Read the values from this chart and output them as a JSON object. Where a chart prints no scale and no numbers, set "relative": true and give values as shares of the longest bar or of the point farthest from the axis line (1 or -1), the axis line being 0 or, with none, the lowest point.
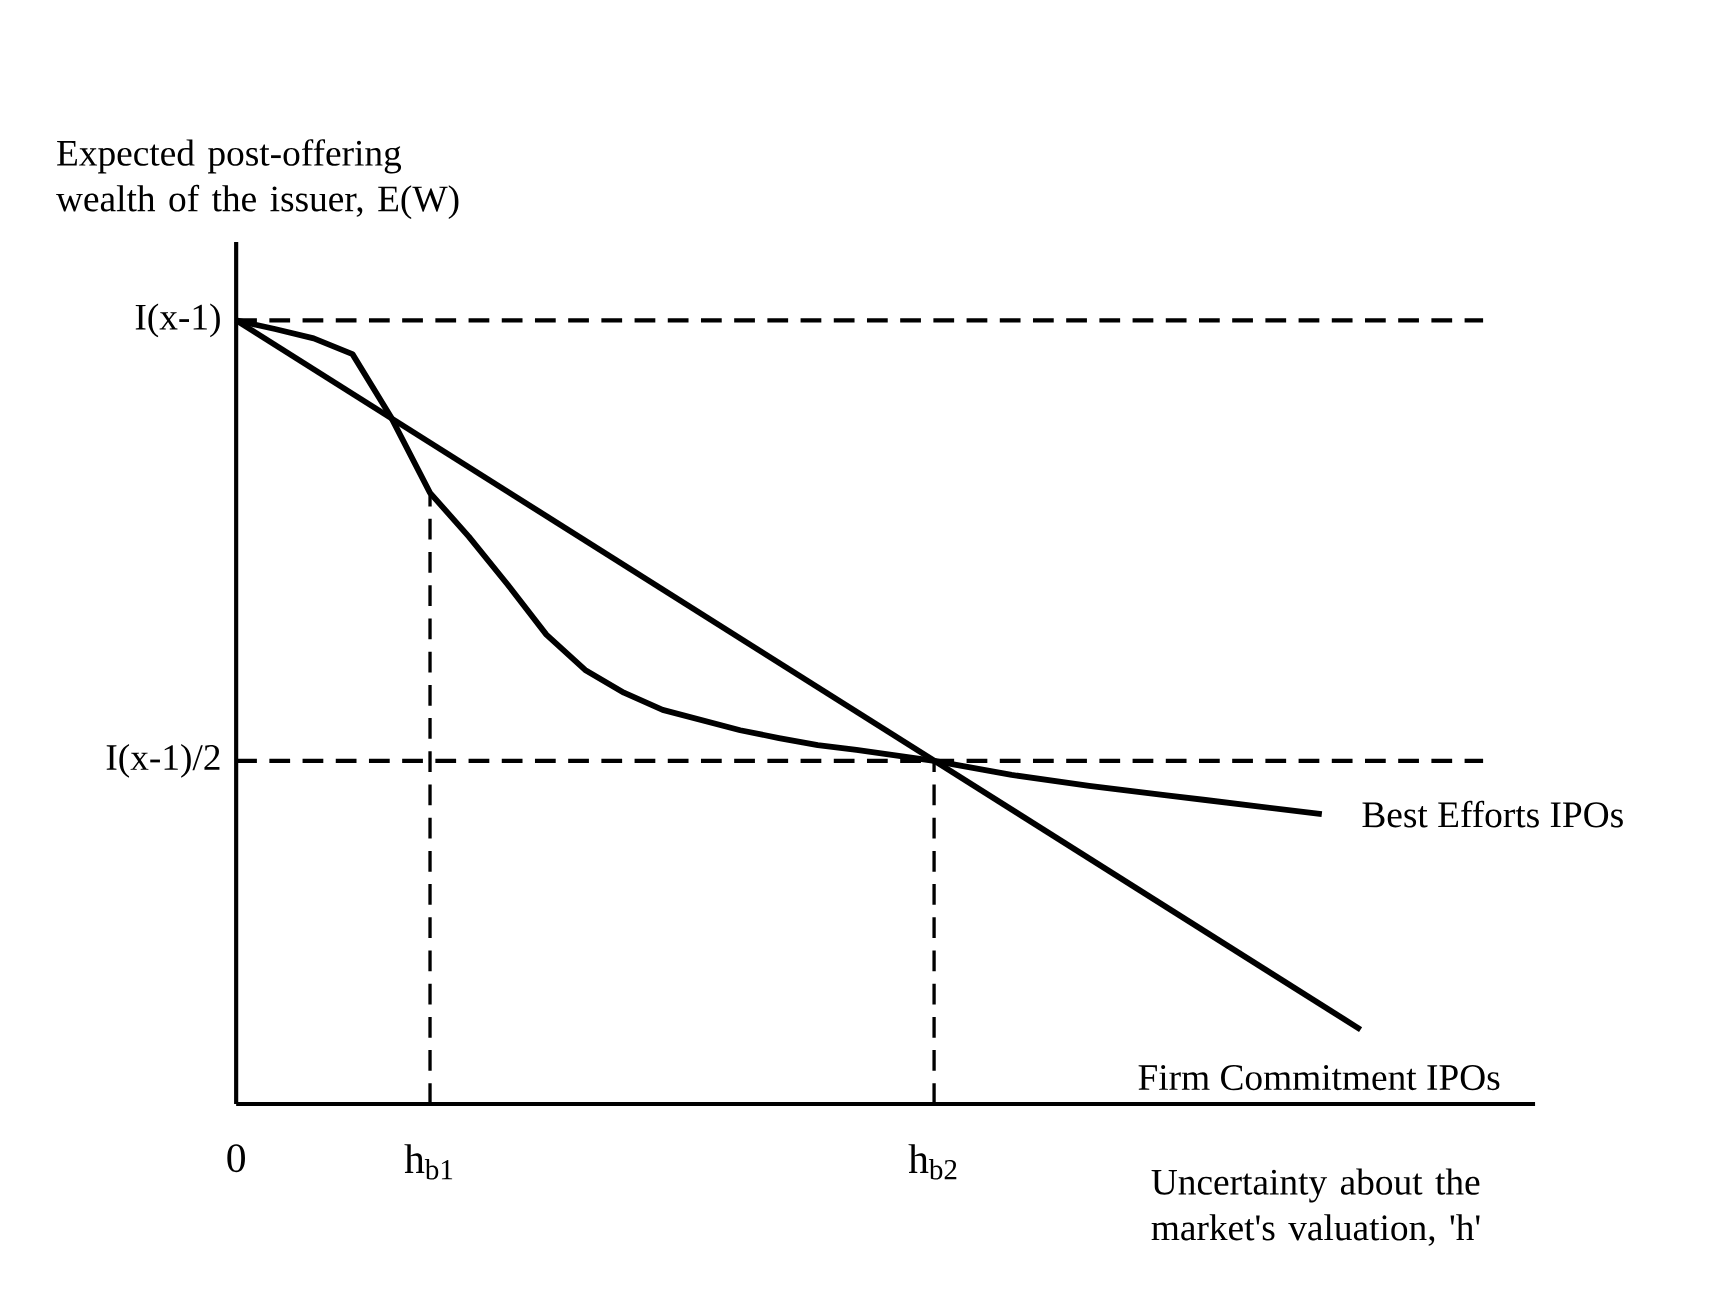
{
  "chart_data": {
    "type": "line",
    "relative": true,
    "xlabel": "Uncertainty about the market's valuation, 'h'",
    "ylabel": "Expected post-offering wealth of the issuer, E(W)",
    "categories": [
      "0",
      null,
      null,
      null,
      null,
      "h$_{b1}$",
      null,
      null,
      null,
      null,
      null,
      null,
      null,
      null,
      null,
      null,
      null,
      null,
      "h$_{b2}$",
      null,
      null,
      null,
      null,
      null,
      null,
      null,
      null,
      null,
      null,
      null,
      null,
      null,
      null,
      null
    ],
    "series": [
      {
        "name": "Best Efforts IPOs",
        "color": "#000000",
        "values": [
          1,
          0.989,
          0.977,
          0.957,
          0.876,
          0.78,
          0.724,
          0.663,
          0.599,
          0.554,
          0.525,
          0.503,
          0.49,
          0.477,
          0.467,
          0.458,
          0.452,
          0.445,
          0.438,
          0.429,
          0.42,
          0.413,
          0.406,
          0.4,
          0.394,
          0.388,
          0.382,
          0.376,
          0.37,
          null,
          null,
          null,
          null,
          null
        ]
      },
      {
        "name": "Firm Commitment IPOs",
        "color": "#000000",
        "values": [
          1,
          null,
          null,
          null,
          null,
          null,
          null,
          null,
          null,
          null,
          null,
          null,
          null,
          null,
          null,
          null,
          null,
          null,
          null,
          null,
          null,
          null,
          null,
          null,
          null,
          null,
          null,
          null,
          null,
          0.095,
          null,
          null,
          null,
          null
        ]
      }
    ],
    "ref_lines": [
      {
        "axis": "y",
        "value": 1,
        "label": "I(x-1)",
        "line_style": "dashed",
        "color": "#000000"
      },
      {
        "axis": "y",
        "value": 0.438,
        "label": "I(x-1)/2",
        "line_style": "dashed",
        "color": "#000000"
      },
      {
        "axis": "x",
        "value": "h$_{b1}$",
        "line_style": "dashed",
        "color": "#000000"
      },
      {
        "axis": "x",
        "value": "h$_{b2}$",
        "line_style": "dashed",
        "color": "#000000"
      }
    ]
  }
}
